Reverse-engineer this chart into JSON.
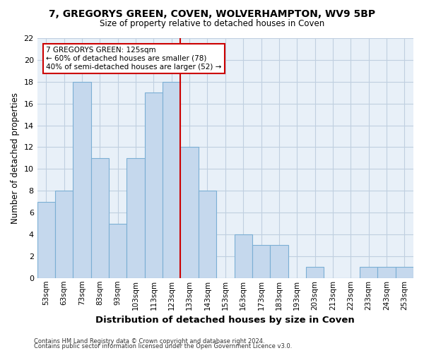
{
  "title": "7, GREGORYS GREEN, COVEN, WOLVERHAMPTON, WV9 5BP",
  "subtitle": "Size of property relative to detached houses in Coven",
  "xlabel": "Distribution of detached houses by size in Coven",
  "ylabel": "Number of detached properties",
  "bar_labels": [
    "53sqm",
    "63sqm",
    "73sqm",
    "83sqm",
    "93sqm",
    "103sqm",
    "113sqm",
    "123sqm",
    "133sqm",
    "143sqm",
    "153sqm",
    "163sqm",
    "173sqm",
    "183sqm",
    "193sqm",
    "203sqm",
    "213sqm",
    "223sqm",
    "233sqm",
    "243sqm",
    "253sqm"
  ],
  "bar_values": [
    7,
    8,
    18,
    11,
    5,
    11,
    17,
    18,
    12,
    8,
    0,
    4,
    3,
    3,
    0,
    1,
    0,
    0,
    1,
    1,
    1
  ],
  "bar_color": "#c5d8ed",
  "bar_edge_color": "#7bafd4",
  "highlight_index": 7,
  "highlight_line_color": "#cc0000",
  "ylim": [
    0,
    22
  ],
  "yticks": [
    0,
    2,
    4,
    6,
    8,
    10,
    12,
    14,
    16,
    18,
    20,
    22
  ],
  "annotation_title": "7 GREGORYS GREEN: 125sqm",
  "annotation_line1": "← 60% of detached houses are smaller (78)",
  "annotation_line2": "40% of semi-detached houses are larger (52) →",
  "annotation_box_color": "#ffffff",
  "annotation_box_edge": "#cc0000",
  "footer1": "Contains HM Land Registry data © Crown copyright and database right 2024.",
  "footer2": "Contains public sector information licensed under the Open Government Licence v3.0.",
  "background_color": "#ffffff",
  "plot_bg_color": "#e8f0f8",
  "grid_color": "#c0cfe0"
}
